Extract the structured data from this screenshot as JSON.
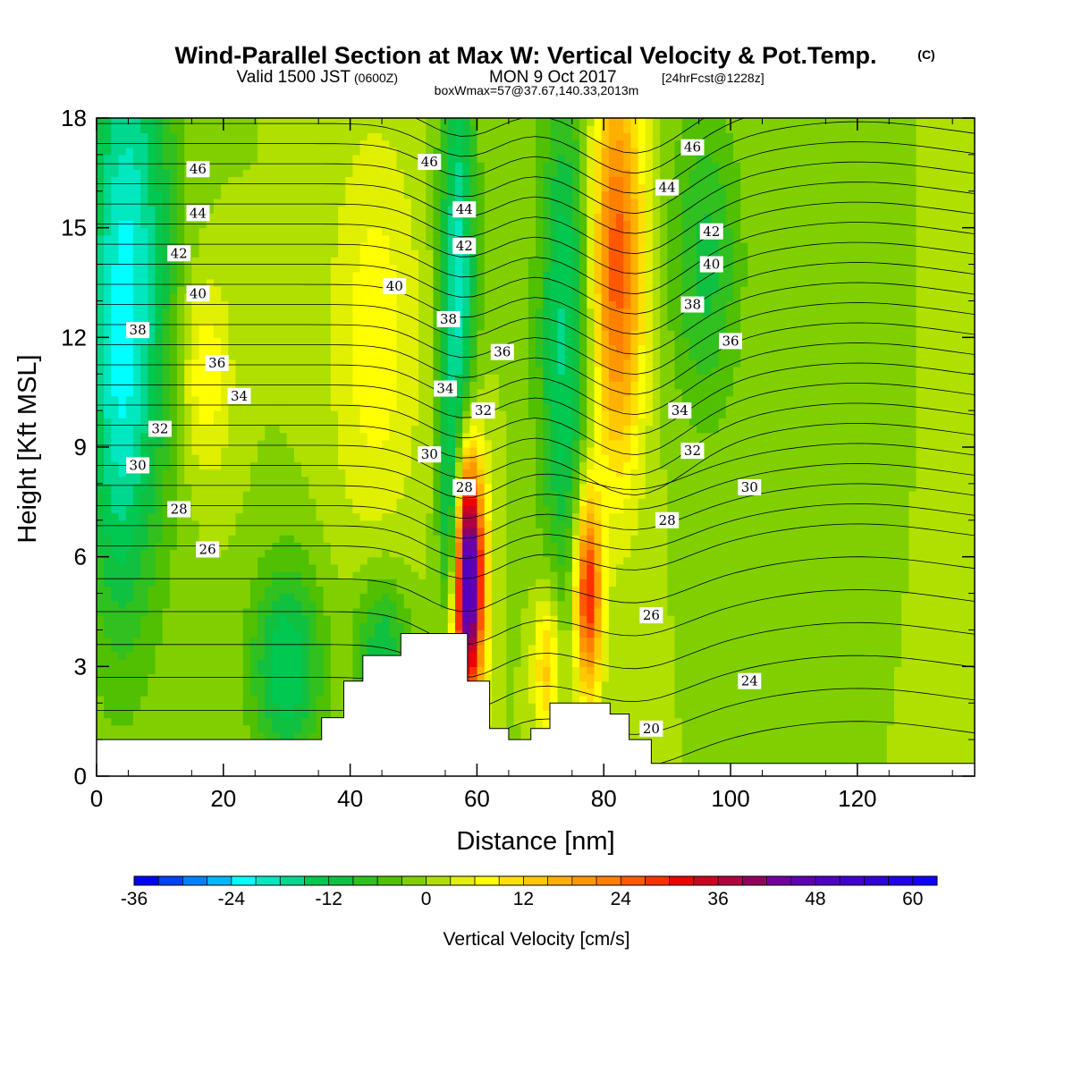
{
  "header": {
    "title": "Wind-Parallel Section at Max W: Vertical Velocity & Pot.Temp.",
    "title_mark": "(C)",
    "valid_prefix": "Valid 1500 JST",
    "valid_utc": "(0600Z)",
    "valid_date": "MON 9 Oct 2017",
    "forecast": "[24hrFcst@1228z]",
    "box_info": "boxWmax=57@37.67,140.33,2013m"
  },
  "chart_data": {
    "type": "heatmap",
    "xlabel": "Distance [nm]",
    "ylabel": "Height [Kft MSL]",
    "xlim": [
      0,
      138.5
    ],
    "ylim": [
      0,
      18
    ],
    "x_ticks": [
      "0",
      "20",
      "40",
      "60",
      "80",
      "100",
      "120"
    ],
    "y_ticks": [
      "0",
      "3",
      "6",
      "9",
      "12",
      "15",
      "18"
    ],
    "colorbar": {
      "title": "Vertical Velocity [cm/s]",
      "tick_labels": [
        "-36",
        "-24",
        "-12",
        "0",
        "12",
        "24",
        "36",
        "48",
        "60"
      ],
      "tick_values": [
        -36,
        -24,
        -12,
        0,
        12,
        24,
        36,
        48,
        60
      ],
      "range": [
        -36,
        63
      ],
      "step": 3,
      "colors": [
        "#0000ff",
        "#0040ff",
        "#0080ff",
        "#00b8ff",
        "#00ffff",
        "#00e8c0",
        "#00d890",
        "#00c850",
        "#10c040",
        "#30c020",
        "#50c000",
        "#80d000",
        "#b0e000",
        "#e0f000",
        "#ffff00",
        "#ffe000",
        "#ffc800",
        "#ffb000",
        "#ff9800",
        "#ff8000",
        "#ff5800",
        "#ff3000",
        "#f00000",
        "#d00020",
        "#b00040",
        "#900060",
        "#7000a0",
        "#6000b0",
        "#5000c0",
        "#4000d0",
        "#3000e0",
        "#2000f0",
        "#1000ff"
      ]
    },
    "field": {
      "background_w": 0,
      "features": [
        {
          "x": 5,
          "y": 14,
          "sx": 5,
          "sy": 6,
          "w": -20
        },
        {
          "x": 3,
          "y": 9,
          "sx": 3,
          "sy": 4,
          "w": -6
        },
        {
          "x": 17,
          "y": 11,
          "sx": 3,
          "sy": 2,
          "w": 9
        },
        {
          "x": 30,
          "y": 3,
          "sx": 4,
          "sy": 2,
          "w": -15
        },
        {
          "x": 45,
          "y": 3.5,
          "sx": 3,
          "sy": 1.5,
          "w": -12
        },
        {
          "x": 44,
          "y": 12,
          "sx": 5,
          "sy": 4,
          "w": 8
        },
        {
          "x": 57,
          "y": 13,
          "sx": 2,
          "sy": 5,
          "w": -20
        },
        {
          "x": 58.5,
          "y": 5.5,
          "sx": 1.8,
          "sy": 2.5,
          "w": 58
        },
        {
          "x": 56,
          "y": 6.5,
          "sx": 1.2,
          "sy": 2,
          "w": -18
        },
        {
          "x": 74,
          "y": 12,
          "sx": 3,
          "sy": 5,
          "w": -16
        },
        {
          "x": 82,
          "y": 14,
          "sx": 3,
          "sy": 4,
          "w": 26
        },
        {
          "x": 77.5,
          "y": 5,
          "sx": 1.5,
          "sy": 2,
          "w": 32
        },
        {
          "x": 71,
          "y": 3,
          "sx": 1.5,
          "sy": 1.5,
          "w": 14
        },
        {
          "x": 96,
          "y": 14,
          "sx": 4,
          "sy": 3,
          "w": -10
        },
        {
          "x": 125,
          "y": 10,
          "sx": 12,
          "sy": 6,
          "w": 0
        }
      ]
    },
    "terrain": {
      "x": [
        0,
        6.5,
        6.5,
        35.5,
        35.5,
        39,
        39,
        42,
        42,
        48,
        48,
        58.5,
        58.5,
        62,
        62,
        65,
        65,
        68.5,
        68.5,
        71.5,
        71.5,
        81,
        81,
        84,
        84,
        87.5,
        87.5,
        138.5
      ],
      "y": [
        1.0,
        1.0,
        1.0,
        1.0,
        1.6,
        1.6,
        2.6,
        2.6,
        3.3,
        3.3,
        3.9,
        3.9,
        2.6,
        2.6,
        1.3,
        1.3,
        1.0,
        1.0,
        1.3,
        1.3,
        2.0,
        2.0,
        1.7,
        1.7,
        1.0,
        1.0,
        0.35,
        0.35
      ]
    },
    "isentrope_labels": [
      {
        "text": "46",
        "x": 16,
        "y": 16.6
      },
      {
        "text": "44",
        "x": 16,
        "y": 15.4
      },
      {
        "text": "42",
        "x": 13,
        "y": 14.3
      },
      {
        "text": "40",
        "x": 16,
        "y": 13.2
      },
      {
        "text": "38",
        "x": 6.5,
        "y": 12.2
      },
      {
        "text": "36",
        "x": 19,
        "y": 11.3
      },
      {
        "text": "34",
        "x": 22.5,
        "y": 10.4
      },
      {
        "text": "32",
        "x": 10,
        "y": 9.5
      },
      {
        "text": "30",
        "x": 6.5,
        "y": 8.5
      },
      {
        "text": "28",
        "x": 13,
        "y": 7.3
      },
      {
        "text": "26",
        "x": 17.5,
        "y": 6.2
      },
      {
        "text": "46",
        "x": 52.5,
        "y": 16.8
      },
      {
        "text": "44",
        "x": 58,
        "y": 15.5
      },
      {
        "text": "42",
        "x": 58,
        "y": 14.5
      },
      {
        "text": "40",
        "x": 47,
        "y": 13.4
      },
      {
        "text": "38",
        "x": 55.5,
        "y": 12.5
      },
      {
        "text": "36",
        "x": 64,
        "y": 11.6
      },
      {
        "text": "34",
        "x": 55,
        "y": 10.6
      },
      {
        "text": "32",
        "x": 61,
        "y": 10.0
      },
      {
        "text": "30",
        "x": 52.5,
        "y": 8.8
      },
      {
        "text": "28",
        "x": 58,
        "y": 7.9
      },
      {
        "text": "46",
        "x": 94,
        "y": 17.2
      },
      {
        "text": "44",
        "x": 90,
        "y": 16.1
      },
      {
        "text": "42",
        "x": 97,
        "y": 14.9
      },
      {
        "text": "40",
        "x": 97,
        "y": 14.0
      },
      {
        "text": "38",
        "x": 94,
        "y": 12.9
      },
      {
        "text": "36",
        "x": 100,
        "y": 11.9
      },
      {
        "text": "34",
        "x": 92,
        "y": 10.0
      },
      {
        "text": "32",
        "x": 94,
        "y": 8.9
      },
      {
        "text": "30",
        "x": 103,
        "y": 7.9
      },
      {
        "text": "28",
        "x": 90,
        "y": 7.0
      },
      {
        "text": "26",
        "x": 87.5,
        "y": 4.4
      },
      {
        "text": "24",
        "x": 103,
        "y": 2.6
      },
      {
        "text": "20",
        "x": 87.5,
        "y": 1.3
      }
    ]
  }
}
